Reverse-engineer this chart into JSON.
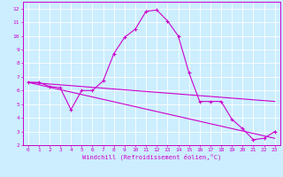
{
  "xlabel": "Windchill (Refroidissement éolien,°C)",
  "bg_color": "#cceeff",
  "line_color": "#cc00cc",
  "grid_color": "#ffffff",
  "xlim": [
    -0.5,
    23.5
  ],
  "ylim": [
    2,
    12.5
  ],
  "xticks": [
    0,
    1,
    2,
    3,
    4,
    5,
    6,
    7,
    8,
    9,
    10,
    11,
    12,
    13,
    14,
    15,
    16,
    17,
    18,
    19,
    20,
    21,
    22,
    23
  ],
  "yticks": [
    2,
    3,
    4,
    5,
    6,
    7,
    8,
    9,
    10,
    11,
    12
  ],
  "series": [
    {
      "x": [
        0,
        1,
        2,
        3,
        4,
        5,
        6,
        7,
        8,
        9,
        10,
        11,
        12,
        13,
        14,
        15,
        16,
        17,
        18,
        19,
        20,
        21,
        22,
        23
      ],
      "y": [
        6.6,
        6.6,
        6.3,
        6.2,
        4.6,
        6.0,
        6.0,
        6.7,
        8.7,
        9.9,
        10.5,
        11.8,
        11.9,
        11.1,
        10.0,
        7.3,
        5.2,
        5.2,
        5.2,
        3.9,
        3.2,
        2.4,
        2.5,
        3.0
      ],
      "with_markers": true
    },
    {
      "x": [
        0,
        23
      ],
      "y": [
        6.6,
        5.2
      ],
      "with_markers": false
    },
    {
      "x": [
        0,
        23
      ],
      "y": [
        6.6,
        2.5
      ],
      "with_markers": false
    }
  ],
  "marker": "+",
  "markersize": 3,
  "linewidth": 0.8,
  "tick_fontsize": 4.5,
  "xlabel_fontsize": 5.0
}
